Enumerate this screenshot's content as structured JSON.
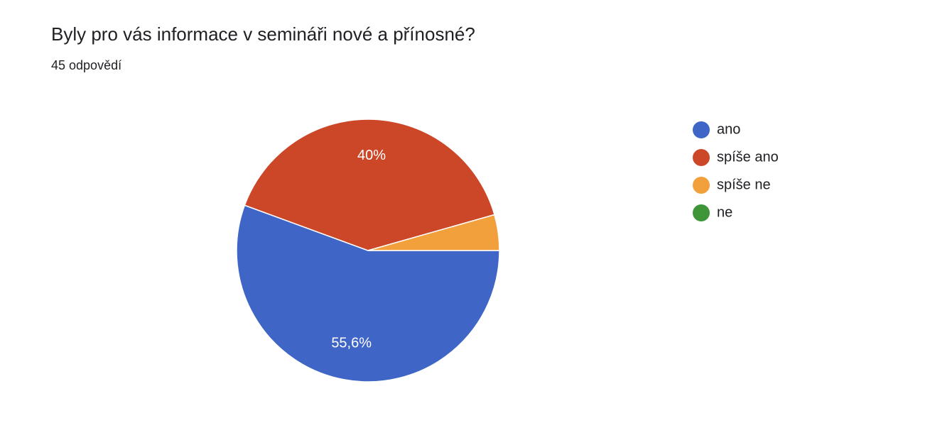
{
  "chart_data": {
    "type": "pie",
    "title": "Byly pro vás informace v semináři nové a přínosné?",
    "subtitle": "45 odpovědí",
    "categories": [
      "ano",
      "spíše ano",
      "spíše ne",
      "ne"
    ],
    "values": [
      55.6,
      40,
      4.4,
      0
    ],
    "value_labels": [
      "55,6%",
      "40%",
      null,
      null
    ],
    "colors": [
      "#3f66c7",
      "#cc4628",
      "#f2a03b",
      "#3f9638"
    ],
    "legend": "right"
  }
}
